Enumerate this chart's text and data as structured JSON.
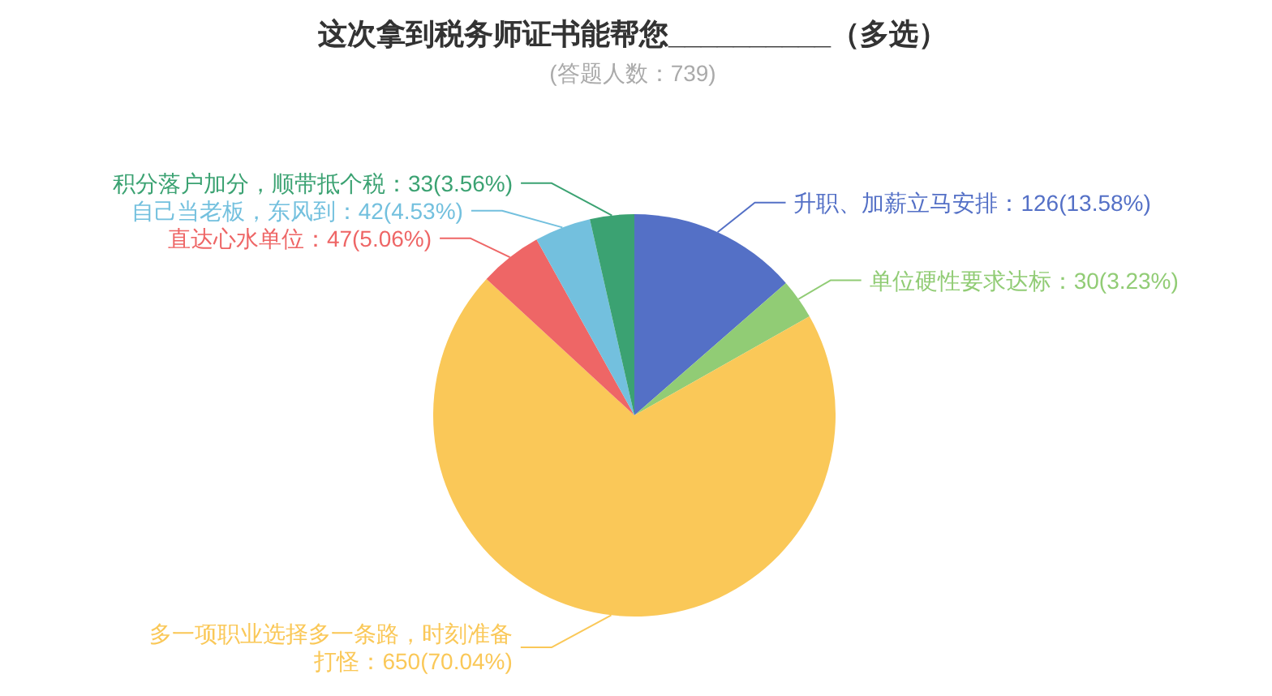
{
  "chart_data": {
    "type": "pie",
    "title": "这次拿到税务师证书能帮您__________（多选）",
    "subtitle": "(答题人数：739)",
    "categories": [
      "升职、加薪立马安排",
      "单位硬性要求达标",
      "多一项职业选择多一条路，时刻准备打怪",
      "直达心水单位",
      "自己当老板，东风到",
      "积分落户加分，顺带抵个税"
    ],
    "values": [
      126,
      30,
      650,
      47,
      42,
      33
    ],
    "colors": [
      "#5470c6",
      "#91cc75",
      "#fac858",
      "#ee6666",
      "#73c0de",
      "#3ba272"
    ],
    "value_labels": [
      "：126(13.58%)",
      "：30(3.23%)",
      "：650(70.04%)",
      "：47(5.06%)",
      "：42(4.53%)",
      "：33(3.56%)"
    ]
  }
}
